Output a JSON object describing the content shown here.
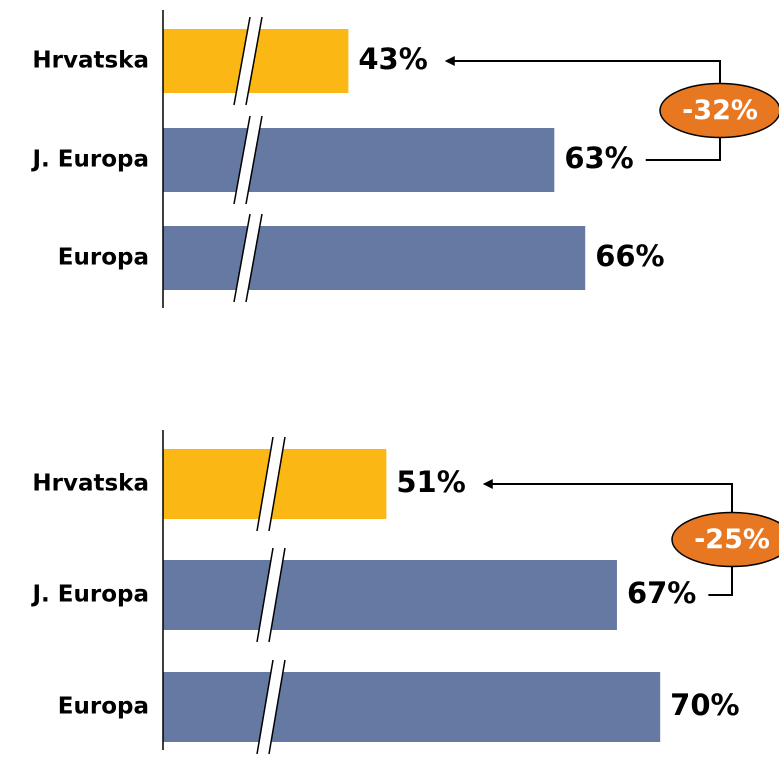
{
  "chart_data": [
    {
      "type": "bar",
      "orientation": "horizontal",
      "categories": [
        "Hrvatska",
        "J. Europa",
        "Europa"
      ],
      "values": [
        43,
        63,
        66
      ],
      "value_labels": [
        "43%",
        "63%",
        "66%"
      ],
      "colors": [
        "#fbb713",
        "#6579a3",
        "#6579a3"
      ],
      "xlim": [
        25,
        72
      ],
      "axis_break": true,
      "annotation": "-32%",
      "annotation_color": "#e87722"
    },
    {
      "type": "bar",
      "orientation": "horizontal",
      "categories": [
        "Hrvatska",
        "J. Europa",
        "Europa"
      ],
      "values": [
        51,
        67,
        70
      ],
      "value_labels": [
        "51%",
        "67%",
        "70%"
      ],
      "colors": [
        "#fbb713",
        "#6579a3",
        "#6579a3"
      ],
      "xlim": [
        35.5,
        72
      ],
      "axis_break": true,
      "annotation": "-25%",
      "annotation_color": "#e87722"
    }
  ]
}
